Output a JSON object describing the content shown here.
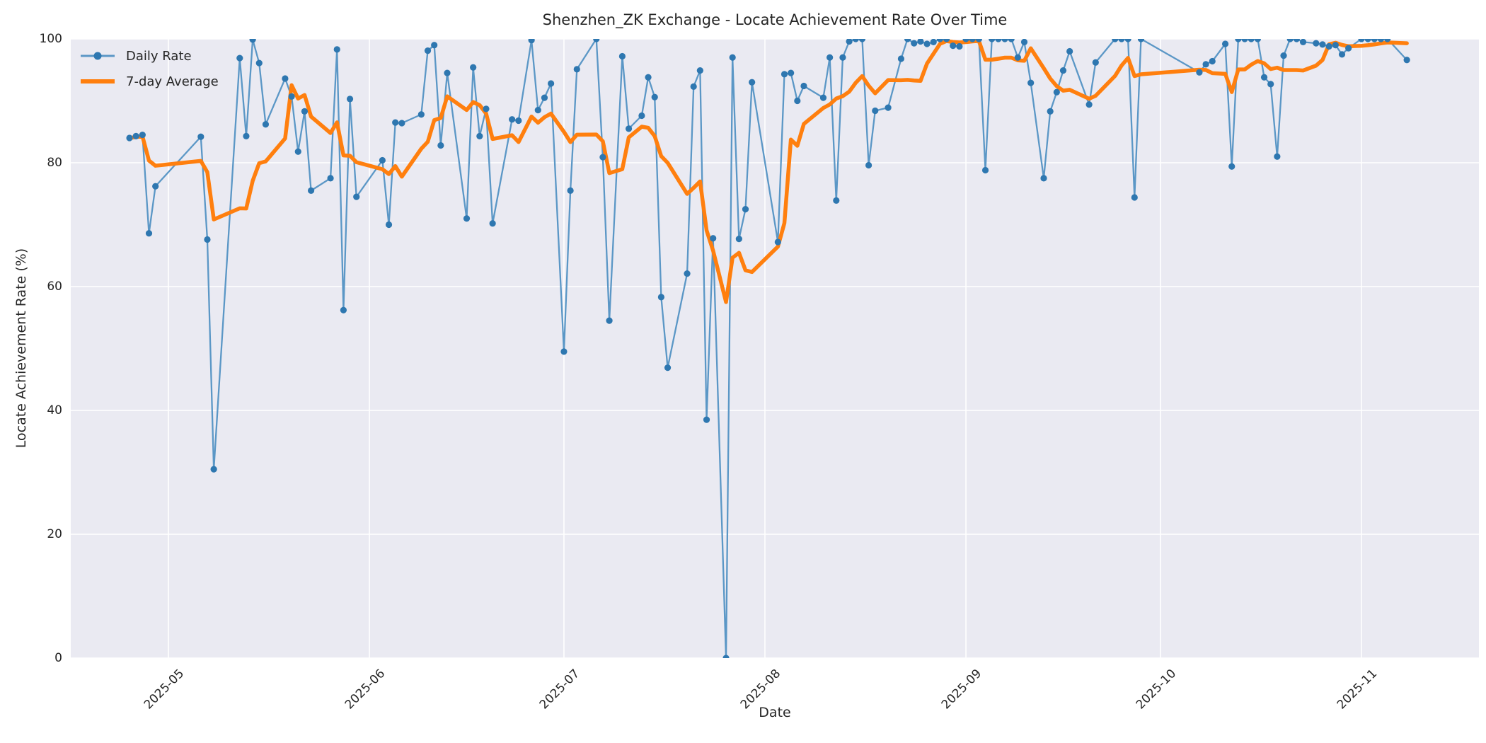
{
  "title": "Shenzhen_ZK Exchange - Locate Achievement Rate Over Time",
  "axes": {
    "x_label": "Date",
    "y_label": "Locate Achievement Rate (%)",
    "x_tick_labels": [
      "2025-05",
      "2025-06",
      "2025-07",
      "2025-08",
      "2025-09",
      "2025-10",
      "2025-11"
    ],
    "y_tick_labels": [
      "0",
      "20",
      "40",
      "60",
      "80",
      "100"
    ],
    "y_ticks": [
      0,
      20,
      40,
      60,
      80,
      100
    ],
    "ylim": [
      0,
      100
    ]
  },
  "legend": {
    "items": [
      {
        "label": "Daily Rate"
      },
      {
        "label": "7-day Average"
      }
    ]
  },
  "colors": {
    "daily_line": "#5b97c6",
    "daily_marker": "#2e77b0",
    "average_line": "#ff7f0e",
    "plot_bg": "#eaeaf2",
    "grid": "#ffffff",
    "text": "#262626"
  },
  "chart_data": {
    "type": "line",
    "title": "Shenzhen_ZK Exchange - Locate Achievement Rate Over Time",
    "xlabel": "Date",
    "ylabel": "Locate Achievement Rate (%)",
    "ylim": [
      0,
      100
    ],
    "grid": true,
    "legend_position": "upper left",
    "x_tick_labels": [
      "2025-05",
      "2025-06",
      "2025-07",
      "2025-08",
      "2025-09",
      "2025-10",
      "2025-11"
    ],
    "series": [
      {
        "name": "Daily Rate",
        "style": "line+marker",
        "points": [
          [
            "2025-04-25",
            84.0
          ],
          [
            "2025-04-26",
            84.3
          ],
          [
            "2025-04-27",
            84.5
          ],
          [
            "2025-04-28",
            68.6
          ],
          [
            "2025-04-29",
            76.2
          ],
          [
            "2025-05-06",
            84.2
          ],
          [
            "2025-05-07",
            67.6
          ],
          [
            "2025-05-08",
            30.5
          ],
          [
            "2025-05-12",
            96.9
          ],
          [
            "2025-05-13",
            84.3
          ],
          [
            "2025-05-14",
            99.9
          ],
          [
            "2025-05-15",
            96.1
          ],
          [
            "2025-05-16",
            86.2
          ],
          [
            "2025-05-19",
            93.6
          ],
          [
            "2025-05-20",
            90.7
          ],
          [
            "2025-05-21",
            81.8
          ],
          [
            "2025-05-22",
            88.3
          ],
          [
            "2025-05-23",
            75.5
          ],
          [
            "2025-05-26",
            77.5
          ],
          [
            "2025-05-27",
            98.3
          ],
          [
            "2025-05-28",
            56.2
          ],
          [
            "2025-05-29",
            90.3
          ],
          [
            "2025-05-30",
            74.5
          ],
          [
            "2025-06-03",
            80.4
          ],
          [
            "2025-06-04",
            70.0
          ],
          [
            "2025-06-05",
            86.5
          ],
          [
            "2025-06-06",
            86.4
          ],
          [
            "2025-06-09",
            87.8
          ],
          [
            "2025-06-10",
            98.1
          ],
          [
            "2025-06-11",
            99.0
          ],
          [
            "2025-06-12",
            82.8
          ],
          [
            "2025-06-13",
            94.5
          ],
          [
            "2025-06-16",
            71.0
          ],
          [
            "2025-06-17",
            95.4
          ],
          [
            "2025-06-18",
            84.3
          ],
          [
            "2025-06-19",
            88.7
          ],
          [
            "2025-06-20",
            70.2
          ],
          [
            "2025-06-23",
            87.0
          ],
          [
            "2025-06-24",
            86.8
          ],
          [
            "2025-06-26",
            99.8
          ],
          [
            "2025-06-27",
            88.5
          ],
          [
            "2025-06-28",
            90.5
          ],
          [
            "2025-06-29",
            92.8
          ],
          [
            "2025-07-01",
            49.5
          ],
          [
            "2025-07-02",
            75.5
          ],
          [
            "2025-07-03",
            95.1
          ],
          [
            "2025-07-06",
            100.0
          ],
          [
            "2025-07-07",
            80.9
          ],
          [
            "2025-07-08",
            54.5
          ],
          [
            "2025-07-10",
            97.2
          ],
          [
            "2025-07-11",
            85.5
          ],
          [
            "2025-07-13",
            87.6
          ],
          [
            "2025-07-14",
            93.8
          ],
          [
            "2025-07-15",
            90.6
          ],
          [
            "2025-07-16",
            58.3
          ],
          [
            "2025-07-17",
            46.9
          ],
          [
            "2025-07-20",
            62.1
          ],
          [
            "2025-07-21",
            92.3
          ],
          [
            "2025-07-22",
            94.9
          ],
          [
            "2025-07-23",
            38.5
          ],
          [
            "2025-07-24",
            67.8
          ],
          [
            "2025-07-26",
            0.0
          ],
          [
            "2025-07-27",
            97.0
          ],
          [
            "2025-07-28",
            67.7
          ],
          [
            "2025-07-29",
            72.5
          ],
          [
            "2025-07-30",
            93.0
          ],
          [
            "2025-08-03",
            67.2
          ],
          [
            "2025-08-04",
            94.3
          ],
          [
            "2025-08-05",
            94.5
          ],
          [
            "2025-08-06",
            90.0
          ],
          [
            "2025-08-07",
            92.4
          ],
          [
            "2025-08-10",
            90.5
          ],
          [
            "2025-08-11",
            97.0
          ],
          [
            "2025-08-12",
            73.9
          ],
          [
            "2025-08-13",
            97.0
          ],
          [
            "2025-08-14",
            99.6
          ],
          [
            "2025-08-15",
            100.0
          ],
          [
            "2025-08-16",
            100.0
          ],
          [
            "2025-08-17",
            79.6
          ],
          [
            "2025-08-18",
            88.4
          ],
          [
            "2025-08-20",
            88.9
          ],
          [
            "2025-08-22",
            96.8
          ],
          [
            "2025-08-23",
            100.0
          ],
          [
            "2025-08-24",
            99.3
          ],
          [
            "2025-08-25",
            99.6
          ],
          [
            "2025-08-26",
            99.2
          ],
          [
            "2025-08-27",
            99.5
          ],
          [
            "2025-08-28",
            100.0
          ],
          [
            "2025-08-29",
            100.0
          ],
          [
            "2025-08-30",
            98.9
          ],
          [
            "2025-08-31",
            98.8
          ],
          [
            "2025-09-01",
            100.0
          ],
          [
            "2025-09-02",
            100.0
          ],
          [
            "2025-09-03",
            100.0
          ],
          [
            "2025-09-04",
            78.8
          ],
          [
            "2025-09-05",
            100.0
          ],
          [
            "2025-09-06",
            100.0
          ],
          [
            "2025-09-07",
            100.0
          ],
          [
            "2025-09-08",
            100.0
          ],
          [
            "2025-09-09",
            97.0
          ],
          [
            "2025-09-10",
            99.5
          ],
          [
            "2025-09-11",
            92.9
          ],
          [
            "2025-09-13",
            77.5
          ],
          [
            "2025-09-14",
            88.3
          ],
          [
            "2025-09-15",
            91.4
          ],
          [
            "2025-09-16",
            94.9
          ],
          [
            "2025-09-17",
            98.0
          ],
          [
            "2025-09-20",
            89.4
          ],
          [
            "2025-09-21",
            96.2
          ],
          [
            "2025-09-24",
            100.0
          ],
          [
            "2025-09-25",
            100.0
          ],
          [
            "2025-09-26",
            100.0
          ],
          [
            "2025-09-27",
            74.4
          ],
          [
            "2025-09-28",
            100.0
          ],
          [
            "2025-10-07",
            94.6
          ],
          [
            "2025-10-08",
            95.9
          ],
          [
            "2025-10-09",
            96.4
          ],
          [
            "2025-10-11",
            99.2
          ],
          [
            "2025-10-12",
            79.4
          ],
          [
            "2025-10-13",
            100.0
          ],
          [
            "2025-10-14",
            100.0
          ],
          [
            "2025-10-15",
            100.0
          ],
          [
            "2025-10-16",
            100.0
          ],
          [
            "2025-10-17",
            93.8
          ],
          [
            "2025-10-18",
            92.7
          ],
          [
            "2025-10-19",
            81.0
          ],
          [
            "2025-10-20",
            97.3
          ],
          [
            "2025-10-21",
            100.0
          ],
          [
            "2025-10-22",
            100.0
          ],
          [
            "2025-10-23",
            99.5
          ],
          [
            "2025-10-25",
            99.3
          ],
          [
            "2025-10-26",
            99.1
          ],
          [
            "2025-10-27",
            98.8
          ],
          [
            "2025-10-28",
            99.0
          ],
          [
            "2025-10-29",
            97.5
          ],
          [
            "2025-10-30",
            98.5
          ],
          [
            "2025-11-01",
            100.0
          ],
          [
            "2025-11-02",
            100.0
          ],
          [
            "2025-11-03",
            100.0
          ],
          [
            "2025-11-04",
            100.0
          ],
          [
            "2025-11-05",
            100.0
          ],
          [
            "2025-11-08",
            96.6
          ]
        ]
      },
      {
        "name": "7-day Average",
        "style": "line",
        "derived_from": "Daily Rate",
        "derivation": "rolling mean of last 7 observations, min_periods 1"
      }
    ]
  }
}
